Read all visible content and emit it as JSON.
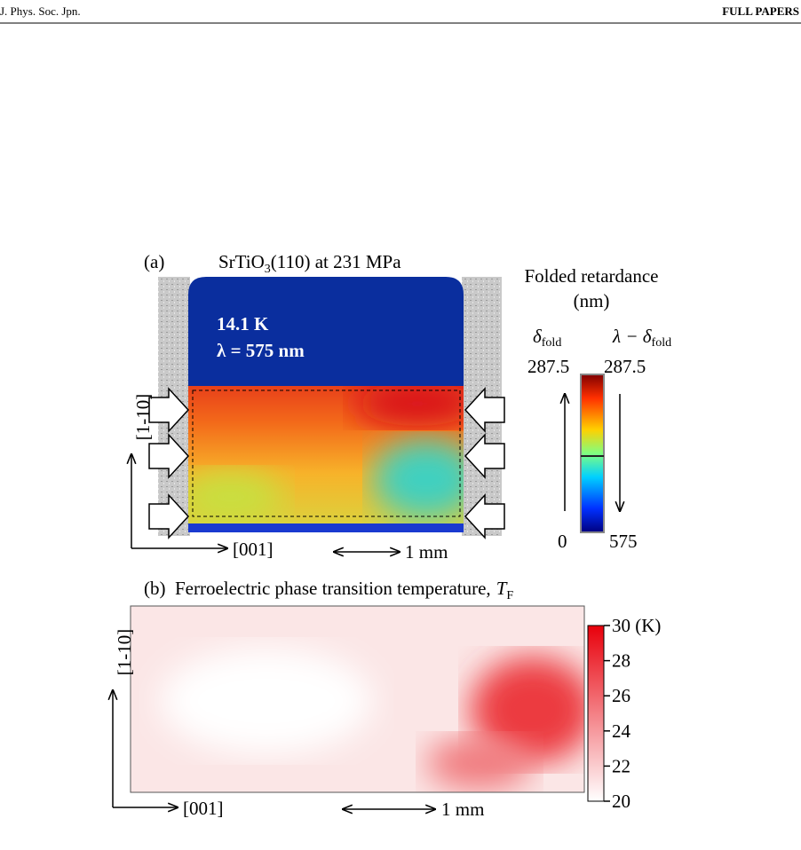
{
  "header": {
    "journal": "J. Phys. Soc. Jpn.",
    "section": "FULL PAPERS"
  },
  "panel_a": {
    "label": "(a)",
    "title": "SrTiO",
    "title_subscript": "3",
    "title_suffix": "(110) at 231 MPa",
    "temperature": "14.1 K",
    "wavelength": "λ = 575 nm",
    "axis_vertical": "[1-10]",
    "axis_horizontal": "[001]",
    "scale_bar": "1 mm",
    "colorbar": {
      "title": "Folded  retardance",
      "unit": "(nm)",
      "left_head": "δ",
      "left_head_subscript": "fold",
      "right_head": "λ − δ",
      "right_head_subscript": "fold",
      "left_top": "287.5",
      "left_bottom": "0",
      "right_top": "287.5",
      "right_bottom": "575"
    }
  },
  "panel_b": {
    "label": "(b)",
    "title": "Ferroelectric phase transition temperature,",
    "title_symbol": "T",
    "title_subscript": "F",
    "axis_vertical": "[1-10]",
    "axis_horizontal": "[001]",
    "scale_bar": "1 mm",
    "colorbar": {
      "lim": [
        20,
        30
      ],
      "ticks": [
        {
          "value": 30,
          "label": "30 (K)"
        },
        28,
        26,
        24,
        22,
        20
      ]
    }
  }
}
